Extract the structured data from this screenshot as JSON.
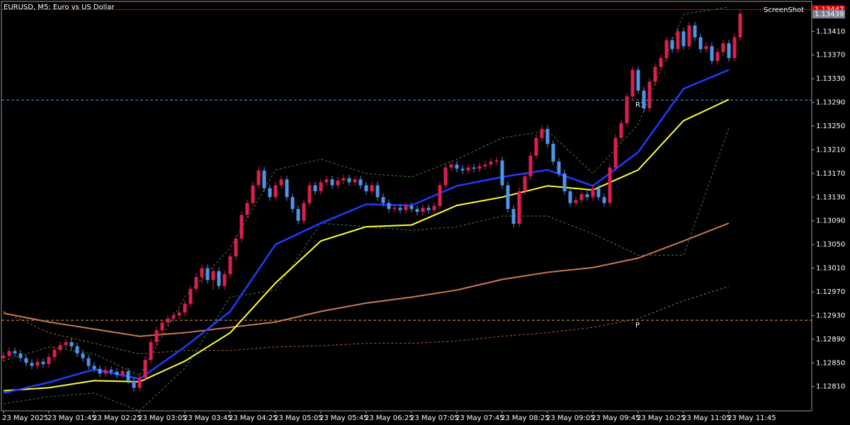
{
  "chart_data": {
    "type": "candlestick",
    "title": "EURUSD, M5:  Euro vs US Dollar",
    "watermark": "ScreenShot",
    "up_color": "#dc1e50",
    "down_color": "#4f94e8",
    "categories": [
      "23 May 2025",
      null,
      null,
      null,
      null,
      null,
      null,
      null,
      "23 May 01:45",
      null,
      null,
      null,
      null,
      null,
      null,
      null,
      "23 May 02:25",
      null,
      null,
      null,
      null,
      null,
      null,
      null,
      "23 May 03:05",
      null,
      null,
      null,
      null,
      null,
      null,
      null,
      "23 May 03:45",
      null,
      null,
      null,
      null,
      null,
      null,
      null,
      "23 May 04:25",
      null,
      null,
      null,
      null,
      null,
      null,
      null,
      "23 May 05:05",
      null,
      null,
      null,
      null,
      null,
      null,
      null,
      "23 May 05:45",
      null,
      null,
      null,
      null,
      null,
      null,
      null,
      "23 May 06:25",
      null,
      null,
      null,
      null,
      null,
      null,
      null,
      "23 May 07:05",
      null,
      null,
      null,
      null,
      null,
      null,
      null,
      "23 May 07:45",
      null,
      null,
      null,
      null,
      null,
      null,
      null,
      "23 May 08:25",
      null,
      null,
      null,
      null,
      null,
      null,
      null,
      "23 May 09:05",
      null,
      null,
      null,
      null,
      null,
      null,
      null,
      "23 May 09:45",
      null,
      null,
      null,
      null,
      null,
      null,
      null,
      "23 May 10:25",
      null,
      null,
      null,
      null,
      null,
      null,
      null,
      "23 May 11:05",
      null,
      null,
      null,
      null,
      null,
      null,
      null,
      "23 May 11:45",
      null,
      null
    ],
    "open": [
      1.12858,
      1.12862,
      1.1287,
      1.12866,
      1.12858,
      1.1285,
      1.12845,
      1.12852,
      1.12848,
      1.1286,
      1.12872,
      1.1288,
      1.12885,
      1.12878,
      1.12866,
      1.12858,
      1.12845,
      1.1284,
      1.12832,
      1.12838,
      1.12835,
      1.1283,
      1.12836,
      1.1282,
      1.12808,
      1.12825,
      1.12855,
      1.12885,
      1.12905,
      1.12918,
      1.12925,
      1.1293,
      1.12935,
      1.1295,
      1.12975,
      1.12995,
      1.1301,
      1.1299,
      1.13005,
      1.1298,
      1.13,
      1.1303,
      1.1306,
      1.131,
      1.1312,
      1.1315,
      1.13175,
      1.13145,
      1.1313,
      1.1315,
      1.1316,
      1.1313,
      1.1311,
      1.1309,
      1.1312,
      1.1315,
      1.1314,
      1.13155,
      1.1316,
      1.1315,
      1.13158,
      1.13162,
      1.13155,
      1.1316,
      1.1315,
      1.1314,
      1.1315,
      1.1313,
      1.1312,
      1.1311,
      1.13112,
      1.13108,
      1.13115,
      1.1311,
      1.13105,
      1.13112,
      1.13108,
      1.13115,
      1.1315,
      1.1318,
      1.13185,
      1.13178,
      1.13175,
      1.1318,
      1.13178,
      1.13182,
      1.13185,
      1.1319,
      1.13192,
      1.1315,
      1.1311,
      1.13085,
      1.1314,
      1.13165,
      1.132,
      1.1323,
      1.13245,
      1.1322,
      1.1319,
      1.1317,
      1.1314,
      1.1312,
      1.13125,
      1.13135,
      1.1313,
      1.13145,
      1.1313,
      1.1312,
      1.1318,
      1.1323,
      1.13255,
      1.133,
      1.13345,
      1.1331,
      1.1328,
      1.13325,
      1.1335,
      1.13365,
      1.13395,
      1.1338,
      1.1341,
      1.13385,
      1.1342,
      1.134,
      1.1338,
      1.13385,
      1.1336,
      1.13375,
      1.1339,
      1.13365,
      1.134
    ],
    "close": [
      1.12862,
      1.1287,
      1.12866,
      1.12858,
      1.1285,
      1.12845,
      1.12852,
      1.12848,
      1.1286,
      1.12872,
      1.1288,
      1.12885,
      1.12878,
      1.12866,
      1.12858,
      1.12845,
      1.1284,
      1.12832,
      1.12838,
      1.12835,
      1.1283,
      1.12836,
      1.1282,
      1.12808,
      1.12825,
      1.12855,
      1.12885,
      1.12905,
      1.12918,
      1.12925,
      1.1293,
      1.12935,
      1.1295,
      1.12975,
      1.12995,
      1.1301,
      1.1299,
      1.13005,
      1.1298,
      1.13,
      1.1303,
      1.1306,
      1.131,
      1.1312,
      1.1315,
      1.13175,
      1.13145,
      1.1313,
      1.1315,
      1.1316,
      1.1313,
      1.1311,
      1.1309,
      1.1312,
      1.1315,
      1.1314,
      1.13155,
      1.1316,
      1.1315,
      1.13158,
      1.13162,
      1.13155,
      1.1316,
      1.1315,
      1.1314,
      1.1315,
      1.1313,
      1.1312,
      1.1311,
      1.13112,
      1.13108,
      1.13115,
      1.1311,
      1.13105,
      1.13112,
      1.13108,
      1.13115,
      1.1315,
      1.1318,
      1.13185,
      1.13178,
      1.13175,
      1.1318,
      1.13178,
      1.13182,
      1.13185,
      1.1319,
      1.13192,
      1.1315,
      1.1311,
      1.13085,
      1.1314,
      1.13165,
      1.132,
      1.1323,
      1.13245,
      1.1322,
      1.1319,
      1.1317,
      1.1314,
      1.1312,
      1.13125,
      1.13135,
      1.1313,
      1.13145,
      1.1313,
      1.1312,
      1.1318,
      1.1323,
      1.13255,
      1.133,
      1.13345,
      1.1331,
      1.1328,
      1.13325,
      1.1335,
      1.13365,
      1.13395,
      1.1338,
      1.1341,
      1.13385,
      1.1342,
      1.134,
      1.1338,
      1.13385,
      1.1336,
      1.13375,
      1.1339,
      1.13365,
      1.134,
      1.1344
    ],
    "high": [
      1.12868,
      1.12876,
      1.12876,
      1.12872,
      1.12864,
      1.12856,
      1.12858,
      1.12858,
      1.12866,
      1.12878,
      1.12886,
      1.12891,
      1.12891,
      1.12884,
      1.12872,
      1.12864,
      1.12851,
      1.12846,
      1.12844,
      1.12844,
      1.12841,
      1.12842,
      1.12842,
      1.12826,
      1.12831,
      1.12861,
      1.12891,
      1.12911,
      1.12924,
      1.12931,
      1.12936,
      1.12941,
      1.12956,
      1.12981,
      1.13001,
      1.13016,
      1.13016,
      1.13011,
      1.13011,
      1.13006,
      1.13036,
      1.13066,
      1.13106,
      1.13126,
      1.13156,
      1.13181,
      1.13181,
      1.13151,
      1.13156,
      1.13166,
      1.13166,
      1.13136,
      1.13116,
      1.13126,
      1.13156,
      1.13156,
      1.13161,
      1.13166,
      1.13166,
      1.13164,
      1.13168,
      1.13168,
      1.13166,
      1.13166,
      1.13156,
      1.13156,
      1.13156,
      1.13136,
      1.13126,
      1.13118,
      1.13118,
      1.13121,
      1.13121,
      1.13116,
      1.13118,
      1.13118,
      1.13121,
      1.13156,
      1.13186,
      1.13191,
      1.13191,
      1.13184,
      1.13186,
      1.13186,
      1.13188,
      1.13191,
      1.13196,
      1.13198,
      1.13198,
      1.13156,
      1.13116,
      1.13146,
      1.13171,
      1.13206,
      1.13236,
      1.13251,
      1.13251,
      1.13226,
      1.13196,
      1.13176,
      1.13146,
      1.13131,
      1.13141,
      1.13141,
      1.13151,
      1.13151,
      1.13136,
      1.13186,
      1.13236,
      1.13261,
      1.13306,
      1.13351,
      1.13351,
      1.13316,
      1.13331,
      1.13356,
      1.13371,
      1.13401,
      1.13401,
      1.13416,
      1.13416,
      1.13426,
      1.13426,
      1.13406,
      1.13391,
      1.13391,
      1.13381,
      1.13396,
      1.13396,
      1.13406,
      1.13446
    ],
    "low": [
      1.12852,
      1.12856,
      1.1286,
      1.12852,
      1.12844,
      1.12839,
      1.12839,
      1.12842,
      1.12842,
      1.12854,
      1.12866,
      1.12874,
      1.12872,
      1.1286,
      1.12852,
      1.12839,
      1.12834,
      1.12826,
      1.12826,
      1.12829,
      1.12824,
      1.12824,
      1.12814,
      1.12802,
      1.12802,
      1.12819,
      1.12849,
      1.12879,
      1.12899,
      1.12912,
      1.12919,
      1.12924,
      1.12929,
      1.12944,
      1.12969,
      1.12984,
      1.12984,
      1.12974,
      1.12974,
      1.12974,
      1.12994,
      1.13024,
      1.13054,
      1.13094,
      1.13114,
      1.13144,
      1.13139,
      1.13124,
      1.13124,
      1.13144,
      1.13124,
      1.13104,
      1.13084,
      1.13084,
      1.13114,
      1.13134,
      1.13134,
      1.13149,
      1.13144,
      1.13144,
      1.13152,
      1.13149,
      1.13149,
      1.13144,
      1.13134,
      1.13134,
      1.13124,
      1.13114,
      1.13104,
      1.13104,
      1.13102,
      1.13102,
      1.13104,
      1.13099,
      1.13099,
      1.13102,
      1.13102,
      1.13109,
      1.13144,
      1.13174,
      1.13172,
      1.13169,
      1.13169,
      1.13172,
      1.13172,
      1.13176,
      1.13179,
      1.13184,
      1.13144,
      1.13104,
      1.13079,
      1.13079,
      1.13134,
      1.13159,
      1.13194,
      1.13224,
      1.13214,
      1.13184,
      1.13164,
      1.13134,
      1.13114,
      1.13114,
      1.13119,
      1.13124,
      1.13124,
      1.13124,
      1.13114,
      1.13114,
      1.13174,
      1.13224,
      1.13249,
      1.13294,
      1.13304,
      1.13274,
      1.13274,
      1.13319,
      1.13344,
      1.13359,
      1.13374,
      1.13374,
      1.13379,
      1.13379,
      1.13394,
      1.13374,
      1.13374,
      1.13354,
      1.13354,
      1.13369,
      1.13359,
      1.13359,
      1.13394
    ],
    "indicators": [
      {
        "color": "#c87a50",
        "width": 2,
        "dash": false,
        "values": [
          1.12934,
          1.12919,
          1.12907,
          1.12895,
          1.12901,
          1.1291,
          1.12919,
          1.12937,
          1.12951,
          1.12961,
          1.12973,
          1.12991,
          1.13003,
          1.13011,
          1.13027,
          1.13056,
          1.13086
        ]
      },
      {
        "color": "#b06040",
        "width": 1,
        "dash": true,
        "values": [
          1.12937,
          1.12901,
          1.12883,
          1.12865,
          1.12871,
          1.12871,
          1.12877,
          1.12879,
          1.12883,
          1.12883,
          1.12887,
          1.12895,
          1.12901,
          1.1291,
          1.12925,
          1.12955,
          1.12979
        ]
      },
      {
        "color": "#3a8a3a",
        "width": 1,
        "dash": true,
        "values": [
          1.12853,
          1.12877,
          1.12865,
          1.12829,
          1.12961,
          1.13044,
          1.13176,
          1.13194,
          1.1317,
          1.13164,
          1.13194,
          1.1323,
          1.13242,
          1.1317,
          1.13253,
          1.13439,
          1.13451
        ]
      },
      {
        "color": "#3a8a3a",
        "width": 1,
        "dash": true,
        "values": [
          1.12781,
          1.12793,
          1.12799,
          1.12769,
          1.12841,
          1.12961,
          1.12973,
          1.13086,
          1.1308,
          1.13074,
          1.1308,
          1.13098,
          1.13098,
          1.13068,
          1.13032,
          1.13032,
          1.13247
        ]
      },
      {
        "color": "#ffff33",
        "width": 2,
        "dash": false,
        "values": [
          1.12803,
          1.12808,
          1.1282,
          1.12818,
          1.12853,
          1.12901,
          1.12985,
          1.13056,
          1.1308,
          1.13083,
          1.13116,
          1.1313,
          1.13149,
          1.13142,
          1.13176,
          1.13259,
          1.13295
        ]
      },
      {
        "color": "#1e3cff",
        "width": 2.5,
        "dash": false,
        "values": [
          1.12799,
          1.12817,
          1.12839,
          1.12823,
          1.12877,
          1.12937,
          1.1305,
          1.13086,
          1.13118,
          1.13116,
          1.13149,
          1.13164,
          1.13176,
          1.13149,
          1.13206,
          1.13313,
          1.13345
        ]
      }
    ],
    "levels": [
      {
        "label": "R1",
        "value": 1.13294,
        "color": "#4aa0e0"
      },
      {
        "label": "P",
        "value": 1.12922,
        "color": "#e0a040"
      }
    ],
    "price_tags": [
      {
        "value": 1.13447,
        "color": "#e00000"
      },
      {
        "value": 1.13439,
        "color": "#7a8090"
      }
    ],
    "ylim": [
      1.12769,
      1.13463
    ],
    "yticks": [
      {
        "value": 1.1341,
        "label": "1.13410"
      },
      {
        "value": 1.1337,
        "label": "1.13370"
      },
      {
        "value": 1.1333,
        "label": "1.13330"
      },
      {
        "value": 1.1329,
        "label": "1.13290"
      },
      {
        "value": 1.1325,
        "label": "1.13250"
      },
      {
        "value": 1.1321,
        "label": "1.13210"
      },
      {
        "value": 1.1317,
        "label": "1.13170"
      },
      {
        "value": 1.1313,
        "label": "1.13130"
      },
      {
        "value": 1.1309,
        "label": "1.13090"
      },
      {
        "value": 1.1305,
        "label": "1.13050"
      },
      {
        "value": 1.1301,
        "label": "1.13010"
      },
      {
        "value": 1.1297,
        "label": "1.12970"
      },
      {
        "value": 1.1293,
        "label": "1.12930"
      },
      {
        "value": 1.1289,
        "label": "1.12890"
      },
      {
        "value": 1.1285,
        "label": "1.12850"
      },
      {
        "value": 1.1281,
        "label": "1.12810"
      }
    ],
    "grid": false
  }
}
